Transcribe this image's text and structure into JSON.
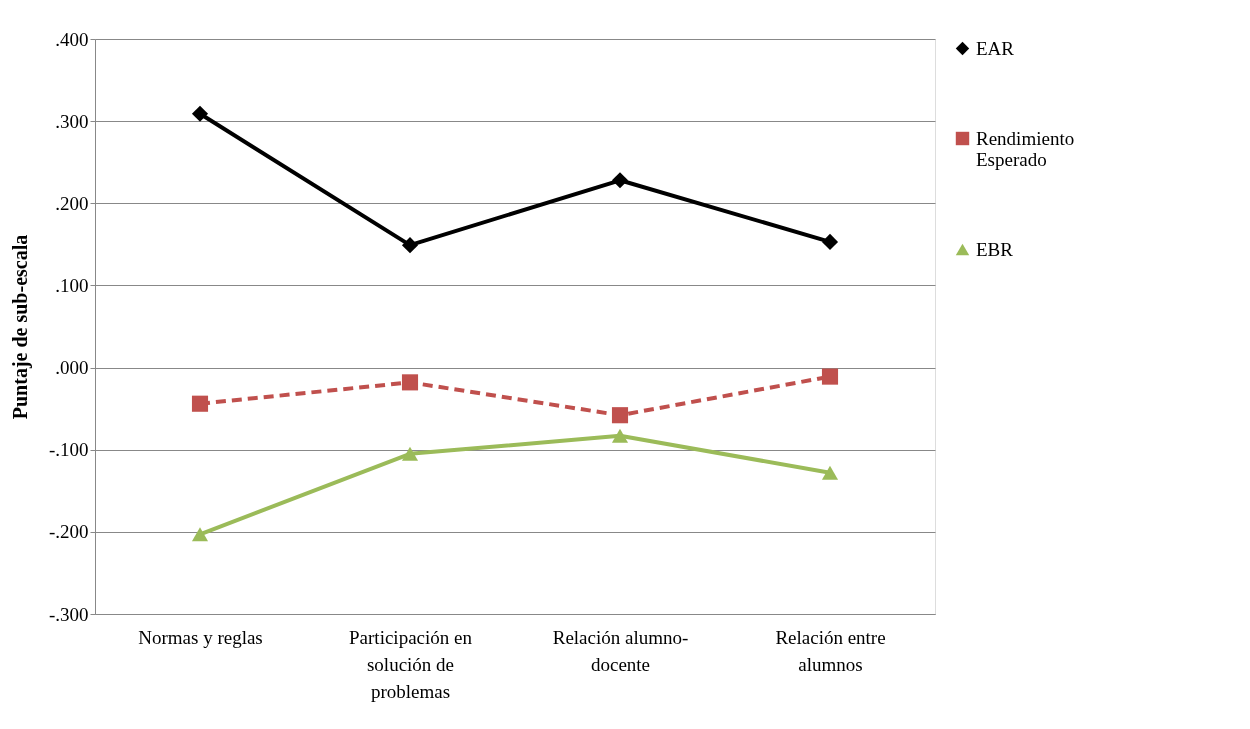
{
  "chart_data": {
    "type": "line",
    "ylabel": "Puntaje de sub-escala",
    "categories": [
      "Normas y reglas",
      "Participación en solución de problemas",
      "Relación alumno-docente",
      "Relación entre alumnos"
    ],
    "series": [
      {
        "name": "EAR",
        "color": "#000000",
        "marker": "diamond",
        "line_style": "solid",
        "values": [
          0.309,
          0.149,
          0.228,
          0.153
        ]
      },
      {
        "name": "Rendimiento Esperado",
        "color": "#c0504d",
        "marker": "square",
        "line_style": "dashed",
        "values": [
          -0.044,
          -0.018,
          -0.058,
          -0.011
        ]
      },
      {
        "name": "EBR",
        "color": "#9bbb59",
        "marker": "triangle",
        "line_style": "solid",
        "values": [
          -0.203,
          -0.105,
          -0.083,
          -0.128
        ]
      }
    ],
    "ylim": [
      -0.3,
      0.4
    ],
    "yticks": [
      {
        "value": -0.3,
        "label": "-.300"
      },
      {
        "value": -0.2,
        "label": "-.200"
      },
      {
        "value": -0.1,
        "label": "-.100"
      },
      {
        "value": 0,
        "label": ".000"
      },
      {
        "value": 0.1,
        "label": ".100"
      },
      {
        "value": 0.2,
        "label": ".200"
      },
      {
        "value": 0.3,
        "label": ".300"
      },
      {
        "value": 0.4,
        "label": ".400"
      }
    ],
    "grid": "y",
    "legend": "right"
  }
}
